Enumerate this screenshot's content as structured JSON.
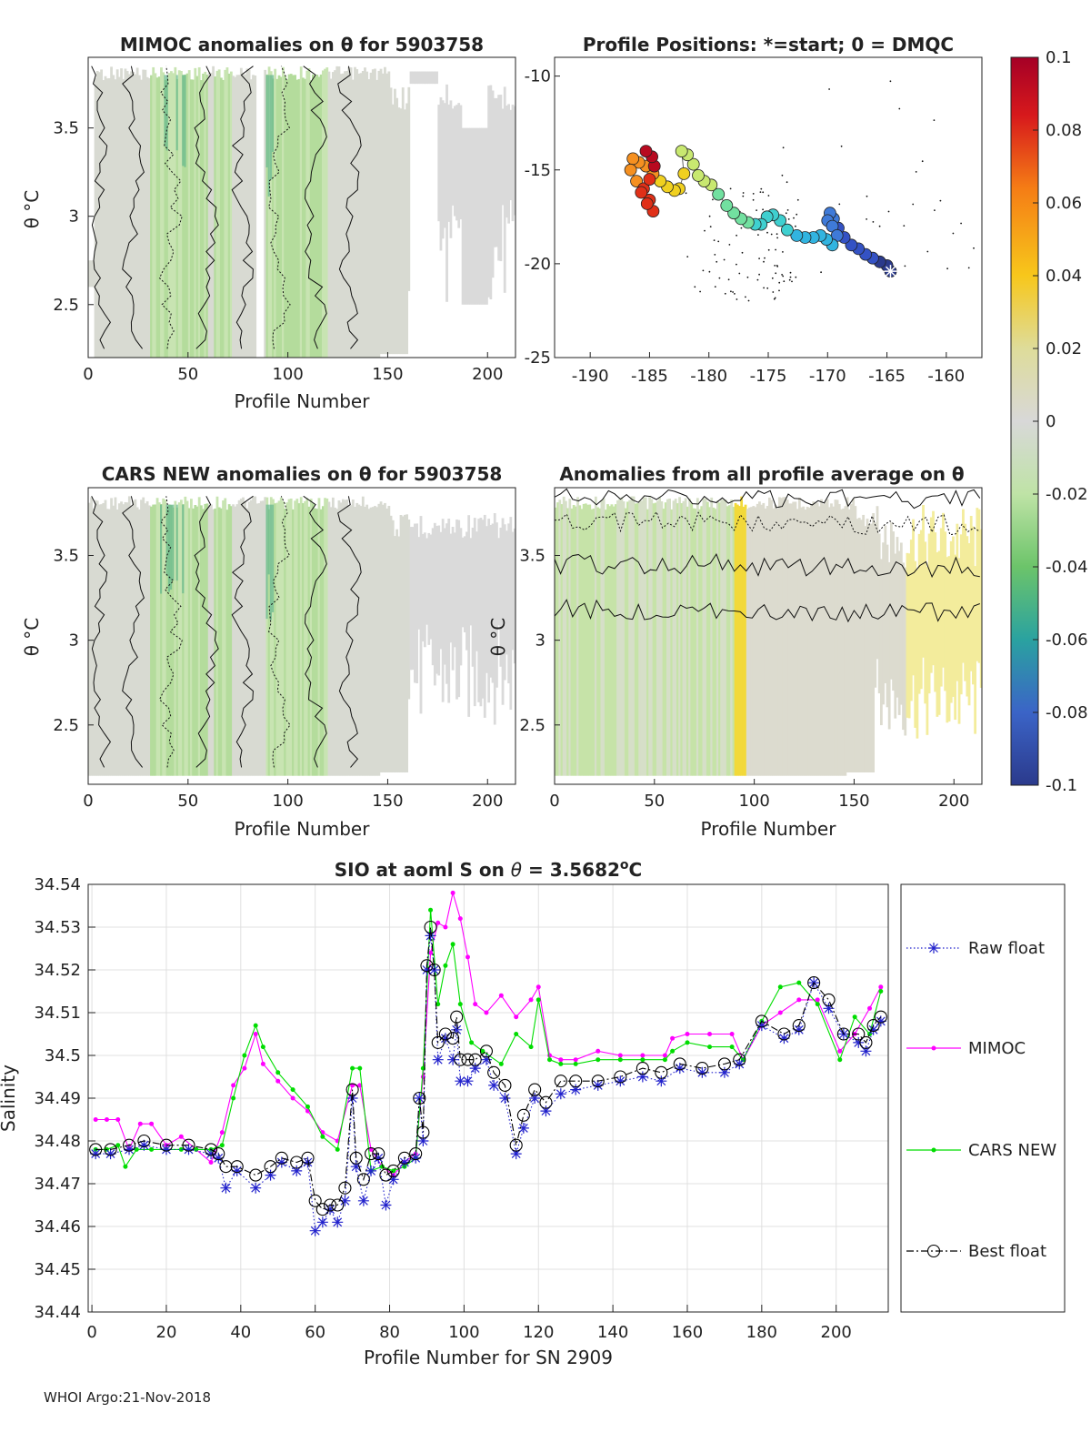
{
  "footer": "WHOI Argo:21-Nov-2018",
  "panels": {
    "mimoc": {
      "title": "MIMOC anomalies on θ  for 5903758",
      "xlabel": "Profile Number",
      "ylabel": "θ °C"
    },
    "positions": {
      "title": "Profile Positions: *=start; 0 = DMQC"
    },
    "cars": {
      "title": "CARS NEW anomalies on θ for 5903758",
      "xlabel": "Profile Number",
      "ylabel": "θ °C"
    },
    "all": {
      "title": "Anomalies from all profile average on θ",
      "xlabel": "Profile Number",
      "ylabel": "θ °C"
    }
  },
  "colorbar": {
    "ticks": [
      "0.1",
      "0.08",
      "0.06",
      "0.04",
      "0.02",
      "0",
      "-0.02",
      "-0.04",
      "-0.06",
      "-0.08",
      "-0.1"
    ],
    "colors": [
      "#a50026",
      "#e03018",
      "#f57d15",
      "#f7c71b",
      "#dedc9a",
      "#d8d8d8",
      "#bfe3a6",
      "#6cc46a",
      "#2aa2a0",
      "#3b64c7",
      "#2b3a8c"
    ]
  },
  "chart_data": [
    {
      "id": "mimoc_anom",
      "type": "heatmap",
      "title": "MIMOC anomalies on θ  for 5903758",
      "xlabel": "Profile Number",
      "ylabel": "θ °C",
      "xlim": [
        0,
        214
      ],
      "ylim": [
        2.2,
        3.9
      ],
      "xticks": [
        0,
        50,
        100,
        150,
        200
      ],
      "xtick_labels": [
        "0",
        "50",
        "100",
        "150",
        "200"
      ],
      "yticks": [
        2.5,
        3,
        3.5
      ],
      "ytick_labels": [
        "2.5",
        "3",
        "3.5"
      ]
    },
    {
      "id": "profile_positions",
      "type": "scatter",
      "title": "Profile Positions: *=start; 0 = DMQC",
      "xlim": [
        -193,
        -157
      ],
      "ylim": [
        -25,
        -9
      ],
      "xticks": [
        -190,
        -185,
        -180,
        -175,
        -170,
        -165,
        -160
      ],
      "xtick_labels": [
        "-190",
        "-185",
        "-180",
        "-175",
        "-170",
        "-165",
        "-160"
      ],
      "yticks": [
        -10,
        -15,
        -20,
        -25
      ],
      "ytick_labels": [
        "-10",
        "-15",
        "-20",
        "-25"
      ],
      "track_lon": [
        -164.7,
        -165.0,
        -165.6,
        -166.2,
        -166.8,
        -167.4,
        -168.0,
        -168.6,
        -169.1,
        -169.5,
        -169.8,
        -170.0,
        -169.6,
        -169.2,
        -169.6,
        -170.1,
        -170.6,
        -171.2,
        -171.9,
        -172.6,
        -173.4,
        -174.0,
        -174.6,
        -175.1,
        -175.6,
        -176.1,
        -176.7,
        -177.3,
        -177.9,
        -178.5,
        -179.2,
        -179.8,
        -180.4,
        -180.9,
        -181.3,
        -181.8,
        -182.3,
        -182.1,
        -182.5,
        -182.9,
        -183.5,
        -184.1,
        -184.7,
        -185.3,
        -185.9,
        -186.4,
        -186.6,
        -186.1,
        -185.5,
        -185.0,
        -184.7,
        -185.2,
        -185.7,
        -185.0,
        -184.6,
        -184.8,
        -185.3
      ],
      "track_lat": [
        -20.4,
        -20.1,
        -19.9,
        -19.7,
        -19.5,
        -19.2,
        -19.0,
        -18.6,
        -18.1,
        -17.6,
        -17.3,
        -17.7,
        -18.0,
        -18.5,
        -19.0,
        -18.7,
        -18.5,
        -18.6,
        -18.6,
        -18.5,
        -18.2,
        -17.7,
        -17.4,
        -17.5,
        -17.9,
        -17.9,
        -17.8,
        -17.6,
        -17.3,
        -16.9,
        -16.3,
        -15.8,
        -15.6,
        -15.3,
        -14.7,
        -14.2,
        -14.0,
        -15.2,
        -16.0,
        -16.1,
        -15.9,
        -15.6,
        -15.2,
        -14.8,
        -14.6,
        -14.4,
        -15.0,
        -15.6,
        -16.0,
        -16.6,
        -17.2,
        -16.8,
        -16.2,
        -15.5,
        -14.8,
        -14.3,
        -14.0
      ]
    },
    {
      "id": "cars_anom",
      "type": "heatmap",
      "title": "CARS NEW anomalies on θ for 5903758",
      "xlabel": "Profile Number",
      "ylabel": "θ °C",
      "xlim": [
        0,
        214
      ],
      "ylim": [
        2.15,
        3.9
      ],
      "xticks": [
        0,
        50,
        100,
        150,
        200
      ],
      "xtick_labels": [
        "0",
        "50",
        "100",
        "150",
        "200"
      ],
      "yticks": [
        2.5,
        3,
        3.5
      ],
      "ytick_labels": [
        "2.5",
        "3",
        "3.5"
      ]
    },
    {
      "id": "all_anom",
      "type": "heatmap",
      "title": "Anomalies from all profile average on θ",
      "xlabel": "Profile Number",
      "ylabel": "θ °C",
      "xlim": [
        0,
        214
      ],
      "ylim": [
        2.15,
        3.9
      ],
      "xticks": [
        0,
        50,
        100,
        150,
        200
      ],
      "xtick_labels": [
        "0",
        "50",
        "100",
        "150",
        "200"
      ],
      "yticks": [
        2.5,
        3,
        3.5
      ],
      "ytick_labels": [
        "2.5",
        "3",
        "3.5"
      ]
    },
    {
      "id": "salinity",
      "type": "line",
      "title": "SIO at aoml S on θ = 3.5682°C",
      "title_parts": {
        "main": "SIO at aoml S on ",
        "theta": "θ",
        "eq": " = 3.5682",
        "deg": "o",
        "unit": "C"
      },
      "xlabel": "Profile Number for SN 2909",
      "ylabel": "Salinity",
      "xlim": [
        -1,
        214
      ],
      "ylim": [
        34.44,
        34.54
      ],
      "xticks": [
        0,
        20,
        40,
        60,
        80,
        100,
        120,
        140,
        160,
        180,
        200
      ],
      "xtick_labels": [
        "0",
        "20",
        "40",
        "60",
        "80",
        "100",
        "120",
        "140",
        "160",
        "180",
        "200"
      ],
      "yticks": [
        34.44,
        34.45,
        34.46,
        34.47,
        34.48,
        34.49,
        34.5,
        34.51,
        34.52,
        34.53,
        34.54
      ],
      "ytick_labels": [
        "34.44",
        "34.45",
        "34.46",
        "34.47",
        "34.48",
        "34.49",
        "34.5",
        "34.51",
        "34.52",
        "34.53",
        "34.54"
      ],
      "grid": true,
      "legend": "right",
      "series": [
        {
          "name": "Raw float",
          "color": "#2222cc",
          "style": "dotted-star",
          "x": [
            1,
            5,
            10,
            14,
            20,
            26,
            32,
            34,
            36,
            39,
            44,
            48,
            51,
            55,
            58,
            60,
            62,
            64,
            66,
            68,
            70,
            71,
            73,
            75,
            77,
            79,
            81,
            84,
            87,
            88,
            89,
            90,
            91,
            92,
            93,
            95,
            97,
            98,
            99,
            101,
            103,
            106,
            108,
            111,
            114,
            116,
            119,
            122,
            126,
            130,
            136,
            142,
            148,
            153,
            158,
            164,
            170,
            174,
            180,
            186,
            190,
            194,
            198,
            202,
            206,
            208,
            210,
            212
          ],
          "values": [
            34.477,
            34.477,
            34.478,
            34.479,
            34.478,
            34.478,
            34.477,
            34.476,
            34.469,
            34.473,
            34.469,
            34.472,
            34.475,
            34.473,
            34.475,
            34.459,
            34.461,
            34.464,
            34.461,
            34.466,
            34.49,
            34.474,
            34.466,
            34.473,
            34.476,
            34.465,
            34.471,
            34.475,
            34.476,
            34.49,
            34.48,
            34.52,
            34.528,
            34.52,
            34.499,
            34.504,
            34.499,
            34.506,
            34.494,
            34.494,
            34.497,
            34.499,
            34.493,
            34.49,
            34.477,
            34.483,
            34.49,
            34.487,
            34.491,
            34.492,
            34.493,
            34.494,
            34.495,
            34.494,
            34.497,
            34.496,
            34.496,
            34.498,
            34.507,
            34.504,
            34.506,
            34.517,
            34.511,
            34.505,
            34.503,
            34.501,
            34.506,
            34.508
          ]
        },
        {
          "name": "MIMOC",
          "color": "#ff00ff",
          "style": "solid-dot",
          "x": [
            1,
            4,
            7,
            10,
            13,
            16,
            20,
            24,
            28,
            32,
            35,
            38,
            41,
            44,
            46,
            50,
            54,
            58,
            62,
            66,
            70,
            72,
            75,
            78,
            81,
            84,
            87,
            89,
            91,
            93,
            95,
            97,
            99,
            101,
            103,
            106,
            110,
            114,
            118,
            120,
            123,
            126,
            130,
            136,
            142,
            148,
            154,
            156,
            160,
            166,
            172,
            175,
            180,
            185,
            190,
            195,
            201,
            205,
            209,
            212
          ],
          "values": [
            34.485,
            34.485,
            34.485,
            34.478,
            34.484,
            34.484,
            34.479,
            34.481,
            34.478,
            34.475,
            34.482,
            34.493,
            34.497,
            34.505,
            34.498,
            34.494,
            34.49,
            34.487,
            34.482,
            34.48,
            34.493,
            34.493,
            34.478,
            34.474,
            34.472,
            34.475,
            34.477,
            34.495,
            34.524,
            34.531,
            34.53,
            34.538,
            34.532,
            34.523,
            34.512,
            34.51,
            34.514,
            34.509,
            34.513,
            34.516,
            34.5,
            34.499,
            34.499,
            34.501,
            34.5,
            34.5,
            34.5,
            34.504,
            34.505,
            34.505,
            34.505,
            34.499,
            34.507,
            34.51,
            34.513,
            34.513,
            34.501,
            34.505,
            34.511,
            34.516
          ]
        },
        {
          "name": "CARS NEW",
          "color": "#00dd00",
          "style": "solid-dot",
          "x": [
            1,
            4,
            7,
            9,
            12,
            16,
            20,
            24,
            28,
            32,
            35,
            38,
            41,
            44,
            46,
            50,
            54,
            58,
            62,
            66,
            70,
            72,
            75,
            78,
            81,
            84,
            87,
            89,
            91,
            93,
            95,
            97,
            99,
            102,
            105,
            110,
            114,
            118,
            120,
            123,
            126,
            130,
            136,
            142,
            148,
            154,
            156,
            160,
            166,
            172,
            175,
            180,
            185,
            190,
            195,
            201,
            205,
            209,
            212
          ],
          "values": [
            34.478,
            34.478,
            34.479,
            34.474,
            34.478,
            34.478,
            34.478,
            34.478,
            34.478,
            34.478,
            34.479,
            34.49,
            34.5,
            34.507,
            34.502,
            34.496,
            34.492,
            34.488,
            34.481,
            34.478,
            34.497,
            34.497,
            34.473,
            34.474,
            34.473,
            34.474,
            34.476,
            34.497,
            34.534,
            34.512,
            34.521,
            34.526,
            34.512,
            34.503,
            34.501,
            34.498,
            34.505,
            34.502,
            34.513,
            34.499,
            34.498,
            34.498,
            34.499,
            34.499,
            34.499,
            34.499,
            34.501,
            34.503,
            34.502,
            34.502,
            34.499,
            34.508,
            34.516,
            34.517,
            34.512,
            34.499,
            34.509,
            34.505,
            34.515
          ]
        },
        {
          "name": "Best float",
          "color": "#000000",
          "style": "dashdot-circle",
          "x": [
            1,
            5,
            10,
            14,
            20,
            26,
            32,
            34,
            36,
            39,
            44,
            48,
            51,
            55,
            58,
            60,
            62,
            64,
            66,
            68,
            70,
            71,
            73,
            75,
            77,
            79,
            81,
            84,
            87,
            88,
            89,
            90,
            91,
            92,
            93,
            95,
            97,
            98,
            99,
            101,
            103,
            106,
            108,
            111,
            114,
            116,
            119,
            122,
            126,
            130,
            136,
            142,
            148,
            153,
            158,
            164,
            170,
            174,
            180,
            186,
            190,
            194,
            198,
            202,
            206,
            208,
            210,
            212
          ],
          "values": [
            34.478,
            34.478,
            34.479,
            34.48,
            34.479,
            34.479,
            34.478,
            34.477,
            34.474,
            34.474,
            34.472,
            34.474,
            34.476,
            34.475,
            34.476,
            34.466,
            34.464,
            34.465,
            34.465,
            34.469,
            34.492,
            34.476,
            34.471,
            34.477,
            34.477,
            34.472,
            34.473,
            34.476,
            34.477,
            34.49,
            34.482,
            34.521,
            34.53,
            34.52,
            34.503,
            34.505,
            34.504,
            34.509,
            34.499,
            34.499,
            34.499,
            34.501,
            34.496,
            34.493,
            34.479,
            34.486,
            34.492,
            34.489,
            34.494,
            34.494,
            34.494,
            34.495,
            34.497,
            34.496,
            34.498,
            34.497,
            34.498,
            34.499,
            34.508,
            34.505,
            34.507,
            34.517,
            34.513,
            34.505,
            34.505,
            34.503,
            34.507,
            34.509
          ]
        }
      ]
    }
  ]
}
